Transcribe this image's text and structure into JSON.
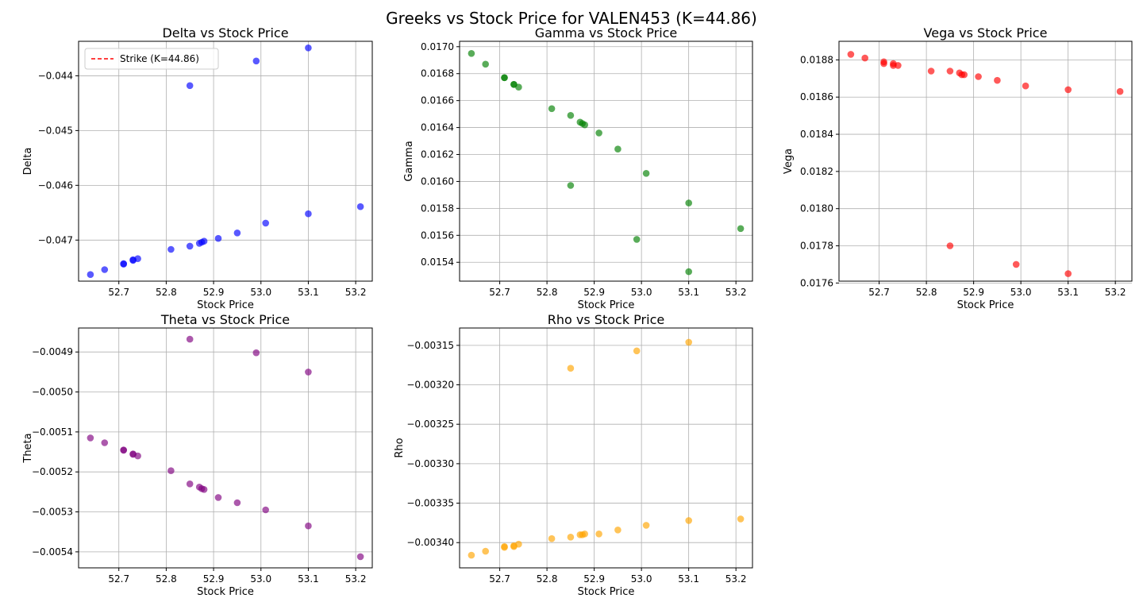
{
  "figure": {
    "title": "Greeks vs Stock Price for VALEN453 (K=44.86)"
  },
  "chart_data": [
    {
      "type": "scatter",
      "title": "Delta vs Stock Price",
      "xlabel": "Stock Price",
      "ylabel": "Delta",
      "color": "#0000ff",
      "xlim": [
        52.615,
        53.235
      ],
      "ylim": [
        -0.04775,
        -0.04337
      ],
      "xticks": [
        52.7,
        52.8,
        52.9,
        53.0,
        53.1,
        53.2
      ],
      "xtick_labels": [
        "52.7",
        "52.8",
        "52.9",
        "53.0",
        "53.1",
        "53.2"
      ],
      "yticks": [
        -0.047,
        -0.046,
        -0.045,
        -0.044
      ],
      "ytick_labels": [
        "−0.047",
        "−0.046",
        "−0.045",
        "−0.044"
      ],
      "grid": true,
      "legend": {
        "placement": "upper-left",
        "entries": [
          {
            "label": "Strike (K=44.86)",
            "color": "#ff0000",
            "style": "dashed"
          }
        ]
      },
      "points": [
        {
          "x": 52.64,
          "y": -0.04763
        },
        {
          "x": 52.67,
          "y": -0.04754
        },
        {
          "x": 52.71,
          "y": -0.04744
        },
        {
          "x": 52.71,
          "y": -0.04743
        },
        {
          "x": 52.73,
          "y": -0.04737
        },
        {
          "x": 52.73,
          "y": -0.04736
        },
        {
          "x": 52.74,
          "y": -0.04734
        },
        {
          "x": 52.81,
          "y": -0.04717
        },
        {
          "x": 52.85,
          "y": -0.04711
        },
        {
          "x": 52.85,
          "y": -0.04418
        },
        {
          "x": 52.87,
          "y": -0.04706
        },
        {
          "x": 52.875,
          "y": -0.04704
        },
        {
          "x": 52.88,
          "y": -0.04702
        },
        {
          "x": 52.91,
          "y": -0.04697
        },
        {
          "x": 52.95,
          "y": -0.04687
        },
        {
          "x": 52.99,
          "y": -0.04373
        },
        {
          "x": 53.01,
          "y": -0.04669
        },
        {
          "x": 53.1,
          "y": -0.04652
        },
        {
          "x": 53.1,
          "y": -0.04349
        },
        {
          "x": 53.21,
          "y": -0.04639
        }
      ]
    },
    {
      "type": "scatter",
      "title": "Gamma vs Stock Price",
      "xlabel": "Stock Price",
      "ylabel": "Gamma",
      "color": "#008000",
      "xlim": [
        52.615,
        53.235
      ],
      "ylim": [
        0.01526,
        0.01704
      ],
      "xticks": [
        52.7,
        52.8,
        52.9,
        53.0,
        53.1,
        53.2
      ],
      "xtick_labels": [
        "52.7",
        "52.8",
        "52.9",
        "53.0",
        "53.1",
        "53.2"
      ],
      "yticks": [
        0.0154,
        0.0156,
        0.0158,
        0.016,
        0.0162,
        0.0164,
        0.0166,
        0.0168,
        0.017
      ],
      "ytick_labels": [
        "0.0154",
        "0.0156",
        "0.0158",
        "0.0160",
        "0.0162",
        "0.0164",
        "0.0166",
        "0.0168",
        "0.0170"
      ],
      "grid": true,
      "points": [
        {
          "x": 52.64,
          "y": 0.01695
        },
        {
          "x": 52.67,
          "y": 0.01687
        },
        {
          "x": 52.71,
          "y": 0.01677
        },
        {
          "x": 52.71,
          "y": 0.01677
        },
        {
          "x": 52.73,
          "y": 0.01672
        },
        {
          "x": 52.73,
          "y": 0.01672
        },
        {
          "x": 52.74,
          "y": 0.0167
        },
        {
          "x": 52.81,
          "y": 0.01654
        },
        {
          "x": 52.85,
          "y": 0.01649
        },
        {
          "x": 52.85,
          "y": 0.01597
        },
        {
          "x": 52.87,
          "y": 0.01644
        },
        {
          "x": 52.875,
          "y": 0.01643
        },
        {
          "x": 52.88,
          "y": 0.01642
        },
        {
          "x": 52.91,
          "y": 0.01636
        },
        {
          "x": 52.95,
          "y": 0.01624
        },
        {
          "x": 52.99,
          "y": 0.01557
        },
        {
          "x": 53.01,
          "y": 0.01606
        },
        {
          "x": 53.1,
          "y": 0.01584
        },
        {
          "x": 53.1,
          "y": 0.01533
        },
        {
          "x": 53.21,
          "y": 0.01565
        }
      ]
    },
    {
      "type": "scatter",
      "title": "Vega vs Stock Price",
      "xlabel": "Stock Price",
      "ylabel": "Vega",
      "color": "#ff0000",
      "xlim": [
        52.615,
        53.235
      ],
      "ylim": [
        0.01761,
        0.0189
      ],
      "xticks": [
        52.7,
        52.8,
        52.9,
        53.0,
        53.1,
        53.2
      ],
      "xtick_labels": [
        "52.7",
        "52.8",
        "52.9",
        "53.0",
        "53.1",
        "53.2"
      ],
      "yticks": [
        0.0176,
        0.0178,
        0.018,
        0.0182,
        0.0184,
        0.0186,
        0.0188
      ],
      "ytick_labels": [
        "0.0176",
        "0.0178",
        "0.0180",
        "0.0182",
        "0.0184",
        "0.0186",
        "0.0188"
      ],
      "grid": true,
      "points": [
        {
          "x": 52.64,
          "y": 0.01883
        },
        {
          "x": 52.67,
          "y": 0.01881
        },
        {
          "x": 52.71,
          "y": 0.01879
        },
        {
          "x": 52.71,
          "y": 0.01878
        },
        {
          "x": 52.73,
          "y": 0.01878
        },
        {
          "x": 52.73,
          "y": 0.01877
        },
        {
          "x": 52.74,
          "y": 0.01877
        },
        {
          "x": 52.81,
          "y": 0.01874
        },
        {
          "x": 52.85,
          "y": 0.01874
        },
        {
          "x": 52.85,
          "y": 0.0178
        },
        {
          "x": 52.87,
          "y": 0.01873
        },
        {
          "x": 52.875,
          "y": 0.01872
        },
        {
          "x": 52.88,
          "y": 0.01872
        },
        {
          "x": 52.91,
          "y": 0.01871
        },
        {
          "x": 52.95,
          "y": 0.01869
        },
        {
          "x": 52.99,
          "y": 0.0177
        },
        {
          "x": 53.01,
          "y": 0.01866
        },
        {
          "x": 53.1,
          "y": 0.01864
        },
        {
          "x": 53.1,
          "y": 0.01765
        },
        {
          "x": 53.21,
          "y": 0.01863
        }
      ]
    },
    {
      "type": "scatter",
      "title": "Theta vs Stock Price",
      "xlabel": "Stock Price",
      "ylabel": "Theta",
      "color": "#800080",
      "xlim": [
        52.615,
        53.235
      ],
      "ylim": [
        -0.00544,
        -0.00484
      ],
      "xticks": [
        52.7,
        52.8,
        52.9,
        53.0,
        53.1,
        53.2
      ],
      "xtick_labels": [
        "52.7",
        "52.8",
        "52.9",
        "53.0",
        "53.1",
        "53.2"
      ],
      "yticks": [
        -0.0054,
        -0.0053,
        -0.0052,
        -0.0051,
        -0.005,
        -0.0049
      ],
      "ytick_labels": [
        "−0.0054",
        "−0.0053",
        "−0.0052",
        "−0.0051",
        "−0.0050",
        "−0.0049"
      ],
      "grid": true,
      "points": [
        {
          "x": 52.64,
          "y": -0.005115
        },
        {
          "x": 52.67,
          "y": -0.005127
        },
        {
          "x": 52.71,
          "y": -0.005145
        },
        {
          "x": 52.71,
          "y": -0.005146
        },
        {
          "x": 52.73,
          "y": -0.005155
        },
        {
          "x": 52.73,
          "y": -0.005156
        },
        {
          "x": 52.74,
          "y": -0.00516
        },
        {
          "x": 52.81,
          "y": -0.005197
        },
        {
          "x": 52.85,
          "y": -0.00523
        },
        {
          "x": 52.85,
          "y": -0.004868
        },
        {
          "x": 52.87,
          "y": -0.005238
        },
        {
          "x": 52.875,
          "y": -0.005242
        },
        {
          "x": 52.88,
          "y": -0.005244
        },
        {
          "x": 52.91,
          "y": -0.005264
        },
        {
          "x": 52.95,
          "y": -0.005277
        },
        {
          "x": 52.99,
          "y": -0.004902
        },
        {
          "x": 53.01,
          "y": -0.005295
        },
        {
          "x": 53.1,
          "y": -0.005335
        },
        {
          "x": 53.1,
          "y": -0.00495
        },
        {
          "x": 53.21,
          "y": -0.005412
        }
      ]
    },
    {
      "type": "scatter",
      "title": "Rho vs Stock Price",
      "xlabel": "Stock Price",
      "ylabel": "Rho",
      "color": "#ffa500",
      "xlim": [
        52.615,
        53.235
      ],
      "ylim": [
        -0.003432,
        -0.003128
      ],
      "xticks": [
        52.7,
        52.8,
        52.9,
        53.0,
        53.1,
        53.2
      ],
      "xtick_labels": [
        "52.7",
        "52.8",
        "52.9",
        "53.0",
        "53.1",
        "53.2"
      ],
      "yticks": [
        -0.0034,
        -0.00335,
        -0.0033,
        -0.00325,
        -0.0032,
        -0.00315
      ],
      "ytick_labels": [
        "−0.00340",
        "−0.00335",
        "−0.00330",
        "−0.00325",
        "−0.00320",
        "−0.00315"
      ],
      "grid": true,
      "points": [
        {
          "x": 52.64,
          "y": -0.003416
        },
        {
          "x": 52.67,
          "y": -0.003411
        },
        {
          "x": 52.71,
          "y": -0.003406
        },
        {
          "x": 52.71,
          "y": -0.003405
        },
        {
          "x": 52.73,
          "y": -0.003405
        },
        {
          "x": 52.73,
          "y": -0.003404
        },
        {
          "x": 52.74,
          "y": -0.003402
        },
        {
          "x": 52.81,
          "y": -0.003395
        },
        {
          "x": 52.85,
          "y": -0.003393
        },
        {
          "x": 52.85,
          "y": -0.003179
        },
        {
          "x": 52.87,
          "y": -0.00339
        },
        {
          "x": 52.875,
          "y": -0.00339
        },
        {
          "x": 52.88,
          "y": -0.003389
        },
        {
          "x": 52.91,
          "y": -0.003389
        },
        {
          "x": 52.95,
          "y": -0.003384
        },
        {
          "x": 52.99,
          "y": -0.003157
        },
        {
          "x": 53.01,
          "y": -0.003378
        },
        {
          "x": 53.1,
          "y": -0.003372
        },
        {
          "x": 53.1,
          "y": -0.003146
        },
        {
          "x": 53.21,
          "y": -0.00337
        }
      ]
    }
  ]
}
